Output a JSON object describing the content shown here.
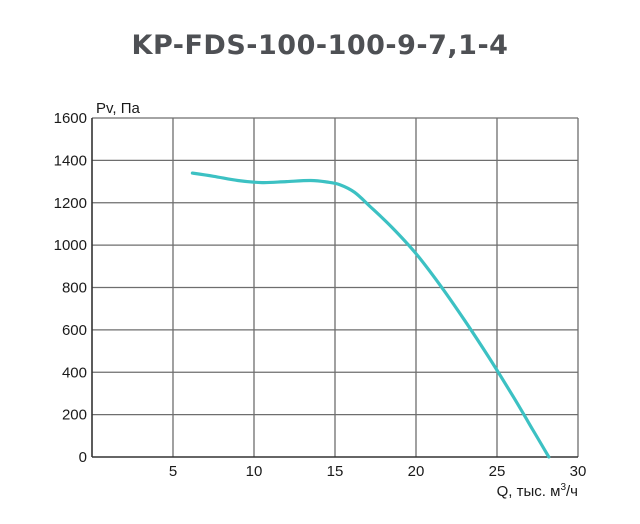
{
  "chart_data": {
    "type": "line",
    "title": "KP-FDS-100-100-9-7,1-4",
    "ylabel_prefix": "Pv, Па",
    "xlabel_prefix": "Q, тыс. м",
    "xlabel_sup": "3",
    "xlabel_suffix": "/ч",
    "xlim": [
      0,
      30
    ],
    "ylim": [
      0,
      1600
    ],
    "x_ticks": [
      "5",
      "10",
      "15",
      "20",
      "25",
      "30"
    ],
    "y_ticks": [
      "0",
      "200",
      "400",
      "600",
      "800",
      "1000",
      "1200",
      "1400",
      "1600"
    ],
    "grid": true,
    "series": [
      {
        "color": "#3cc1c3",
        "x": [
          6.2,
          7.5,
          9,
          10.5,
          12,
          13.5,
          14.5,
          15.3,
          16.2,
          17.2,
          18.5,
          20,
          21.5,
          23,
          24.5,
          26,
          27.2,
          28.2
        ],
        "y": [
          1340,
          1325,
          1305,
          1295,
          1300,
          1305,
          1298,
          1285,
          1250,
          1180,
          1085,
          960,
          810,
          645,
          470,
          285,
          130,
          0
        ]
      }
    ]
  }
}
